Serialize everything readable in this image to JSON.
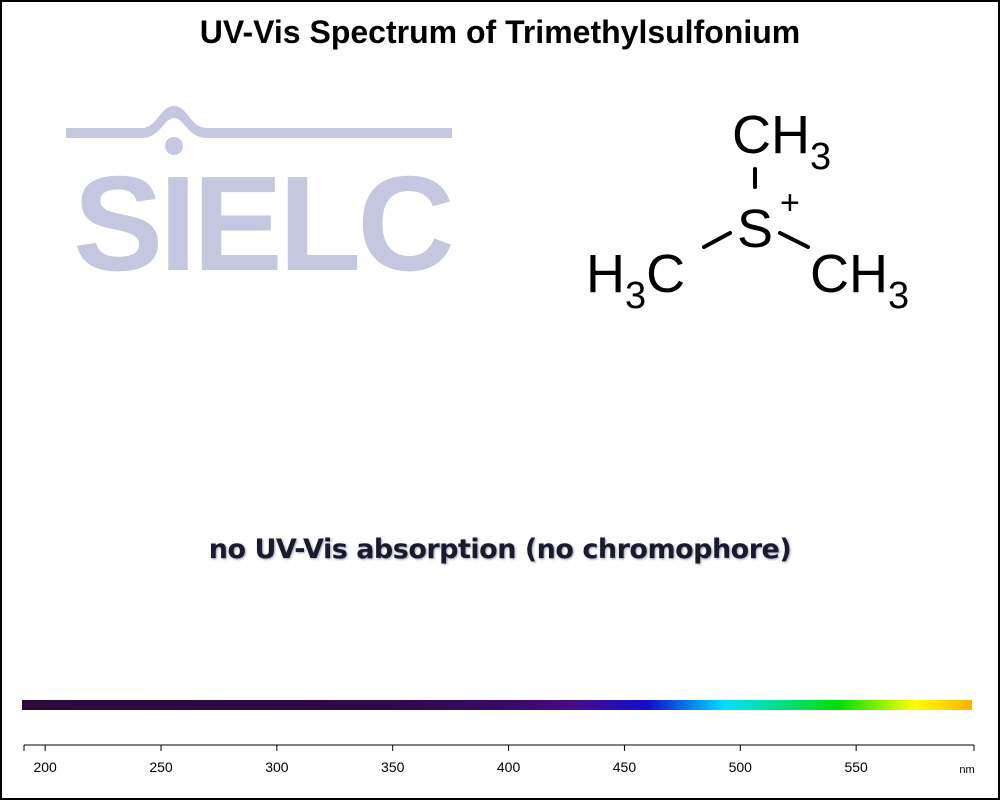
{
  "chart_data": {
    "type": "line",
    "title": "UV-Vis Spectrum of Trimethylsulfonium",
    "annotation": "no UV-Vis absorption (no chromophore)",
    "x_unit": "nm",
    "x_ticks": [
      200,
      250,
      300,
      350,
      400,
      450,
      500,
      550
    ],
    "xlim": [
      190,
      600
    ],
    "series": []
  },
  "logo": {
    "text": "SIELC",
    "color": "#c5c6e0"
  },
  "molecule": {
    "top": "CH3",
    "center": "S",
    "charge": "+",
    "left": "H3C",
    "right": "CH3"
  },
  "spectrum_colors": [
    "#2a0a3a",
    "#2e0a4a",
    "#3a0a6a",
    "#4a0a8a",
    "#1010d0",
    "#00e0ff",
    "#00e000",
    "#ffff00",
    "#ffb000"
  ]
}
